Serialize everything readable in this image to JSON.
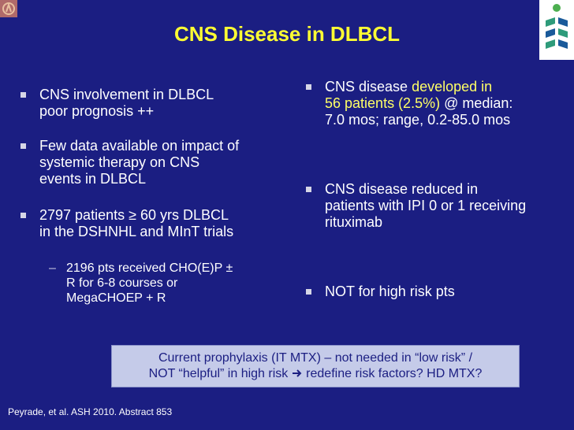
{
  "title": "CNS Disease in DLBCL",
  "left_bullets": [
    {
      "line1": "CNS involvement in DLBCL",
      "line2": "poor prognosis ++",
      "line3": ""
    },
    {
      "line1": "Few data available on impact of",
      "line2": "systemic therapy on CNS",
      "line3": "events in DLBCL"
    },
    {
      "line1": "2797 patients ≥ 60 yrs DLBCL",
      "line2": "in the DSHNHL and MInT trials",
      "line3": ""
    }
  ],
  "sub_bullet": {
    "line1": "2196 pts received CHO(E)P ±",
    "line2": "R for 6-8 courses or",
    "line3": "MegaCHOEP + R"
  },
  "right_bullets": [
    {
      "pre": "CNS disease ",
      "hl1": "developed in",
      "hl2": "56 patients (2.5%)",
      "post": " @ median:",
      "line3": "7.0 mos; range, 0.2-85.0 mos"
    },
    {
      "line1": "CNS disease reduced in",
      "line2": "patients with IPI 0 or 1 receiving",
      "line3": "rituximab"
    },
    {
      "line1": "NOT for high risk pts"
    }
  ],
  "callout": {
    "line1": "Current prophylaxis (IT MTX) – not needed in “low risk” /",
    "line2a": "NOT “helpful” in high risk",
    "line2b": " redefine risk factors? HD MTX?"
  },
  "footer": "Peyrade, et al. ASH 2010. Abstract 853",
  "colors": {
    "background": "#1b1e82",
    "title": "#ffff33",
    "highlight": "#ffff66",
    "callout_bg": "#c5cbe9"
  },
  "icons": [
    "presenter-logo",
    "brand-logo",
    "arrow-right-icon"
  ]
}
